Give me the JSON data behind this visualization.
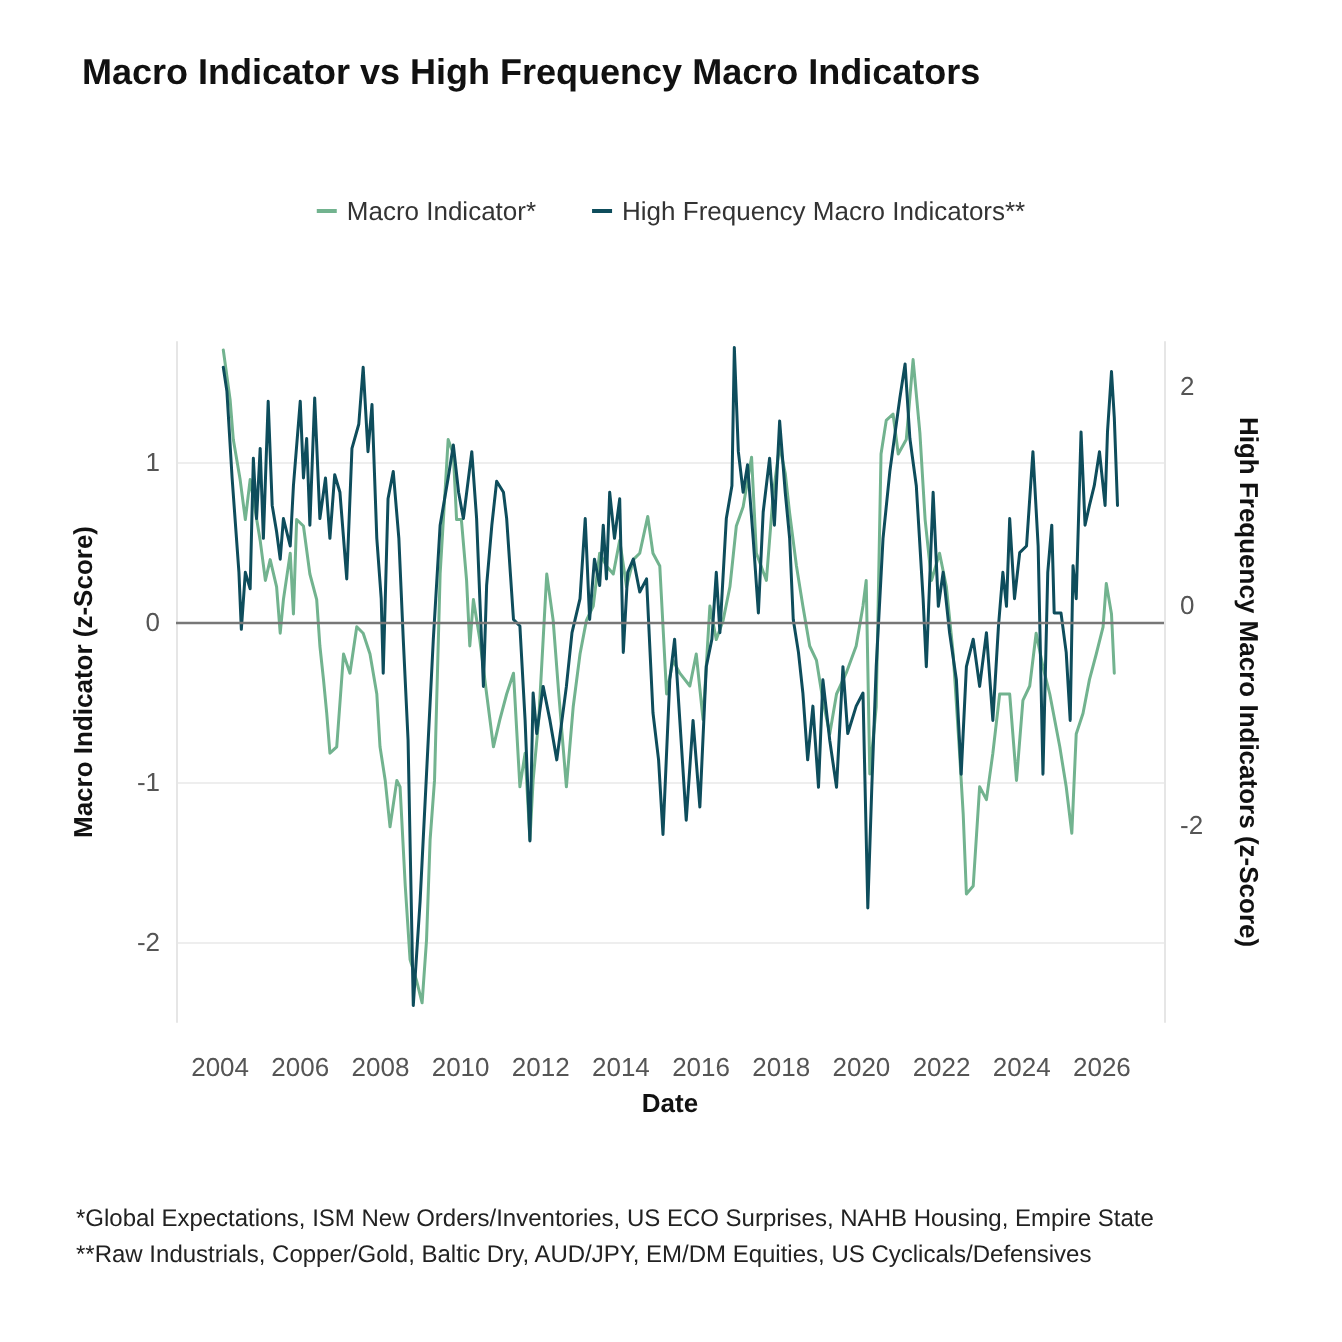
{
  "chart_data": {
    "type": "line",
    "title": "Macro Indicator vs High Frequency Macro Indicators",
    "xlabel": "Date",
    "ylabel": "Macro Indicator (z-Score)",
    "y2label": "High Frequency Macro Indicators (z-Score)",
    "xlim": [
      2002.9,
      2027.55
    ],
    "xticks": [
      2004,
      2006,
      2008,
      2010,
      2012,
      2014,
      2016,
      2018,
      2020,
      2022,
      2024,
      2026
    ],
    "ylim": [
      -2.5,
      1.75
    ],
    "yticks": [
      -2,
      -1,
      0,
      1
    ],
    "y2lim": [
      -3.8,
      2.4
    ],
    "y2ticks": [
      -2,
      0,
      2
    ],
    "grid": "y",
    "legend": "top",
    "line_style": "solid",
    "ref_lines": [
      {
        "axis": "y",
        "value": 0,
        "color": "#777777"
      }
    ],
    "annotations": [
      "*Global Expectations, ISM New Orders/Inventories, US ECO Surprises, NAHB Housing, Empire State",
      "**Raw Industrials, Copper/Gold, Baltic Dry, AUD/JPY, EM/DM Equities, US Cyclicals/Defensives"
    ],
    "series": [
      {
        "name": "Macro Indicator*",
        "color": "#72b38f",
        "axis": "y",
        "x": [
          2004.08,
          2004.25,
          2004.33,
          2004.5,
          2004.63,
          2004.75,
          2005.0,
          2005.13,
          2005.25,
          2005.41,
          2005.5,
          2005.58,
          2005.75,
          2005.83,
          2005.91,
          2006.08,
          2006.24,
          2006.41,
          2006.49,
          2006.58,
          2006.66,
          2006.74,
          2006.91,
          2007.08,
          2007.24,
          2007.41,
          2007.57,
          2007.74,
          2007.91,
          2007.99,
          2008.12,
          2008.24,
          2008.41,
          2008.49,
          2008.62,
          2008.74,
          2008.9,
          2009.04,
          2009.15,
          2009.24,
          2009.35,
          2009.49,
          2009.69,
          2009.82,
          2009.9,
          2010.02,
          2010.15,
          2010.23,
          2010.32,
          2010.48,
          2010.65,
          2010.82,
          2010.98,
          2011.15,
          2011.32,
          2011.48,
          2011.61,
          2011.73,
          2011.81,
          2011.95,
          2012.06,
          2012.15,
          2012.31,
          2012.45,
          2012.64,
          2012.81,
          2012.98,
          2013.14,
          2013.31,
          2013.47,
          2013.64,
          2013.81,
          2013.97,
          2014.14,
          2014.31,
          2014.47,
          2014.67,
          2014.8,
          2014.97,
          2015.14,
          2015.3,
          2015.47,
          2015.72,
          2015.88,
          2016.05,
          2016.22,
          2016.38,
          2016.55,
          2016.72,
          2016.88,
          2017.05,
          2017.26,
          2017.38,
          2017.63,
          2017.8,
          2017.96,
          2018.1,
          2018.21,
          2018.38,
          2018.54,
          2018.71,
          2018.88,
          2019.04,
          2019.21,
          2019.38,
          2019.62,
          2019.87,
          2020.04,
          2020.12,
          2020.21,
          2020.37,
          2020.49,
          2020.62,
          2020.79,
          2020.92,
          2021.12,
          2021.29,
          2021.46,
          2021.59,
          2021.75,
          2021.95,
          2022.12,
          2022.29,
          2022.45,
          2022.54,
          2022.62,
          2022.79,
          2022.95,
          2023.12,
          2023.28,
          2023.45,
          2023.7,
          2023.87,
          2024.03,
          2024.2,
          2024.36,
          2024.53,
          2024.7,
          2024.95,
          2025.11,
          2025.25,
          2025.36,
          2025.53,
          2025.69,
          2025.86,
          2026.03,
          2026.11,
          2026.24,
          2026.31
        ],
        "values": [
          1.7,
          1.39,
          1.14,
          0.89,
          0.64,
          0.89,
          0.51,
          0.26,
          0.39,
          0.22,
          -0.07,
          0.14,
          0.43,
          0.05,
          0.64,
          0.6,
          0.3,
          0.14,
          -0.15,
          -0.36,
          -0.57,
          -0.82,
          -0.78,
          -0.2,
          -0.32,
          -0.03,
          -0.07,
          -0.2,
          -0.45,
          -0.78,
          -0.99,
          -1.28,
          -0.99,
          -1.03,
          -1.65,
          -2.11,
          -2.24,
          -2.38,
          -1.99,
          -1.36,
          -0.99,
          0.3,
          1.14,
          1.05,
          0.64,
          0.64,
          0.26,
          -0.15,
          0.14,
          -0.11,
          -0.45,
          -0.78,
          -0.61,
          -0.45,
          -0.32,
          -1.03,
          -0.82,
          -1.36,
          -0.99,
          -0.61,
          -0.11,
          0.3,
          0.01,
          -0.45,
          -1.03,
          -0.53,
          -0.2,
          0.01,
          0.1,
          0.43,
          0.35,
          0.3,
          0.51,
          0.22,
          0.39,
          0.43,
          0.66,
          0.43,
          0.35,
          -0.45,
          -0.24,
          -0.32,
          -0.4,
          -0.2,
          -0.61,
          0.1,
          -0.11,
          0.01,
          0.22,
          0.6,
          0.72,
          1.03,
          0.43,
          0.26,
          0.8,
          1.1,
          0.93,
          0.68,
          0.35,
          0.1,
          -0.15,
          -0.24,
          -0.49,
          -0.7,
          -0.45,
          -0.32,
          -0.15,
          0.1,
          0.26,
          -0.95,
          -0.53,
          1.05,
          1.26,
          1.3,
          1.05,
          1.14,
          1.64,
          1.18,
          0.64,
          0.26,
          0.43,
          0.22,
          -0.2,
          -0.82,
          -1.2,
          -1.7,
          -1.65,
          -1.03,
          -1.11,
          -0.82,
          -0.45,
          -0.45,
          -0.99,
          -0.49,
          -0.4,
          -0.07,
          -0.28,
          -0.45,
          -0.78,
          -1.03,
          -1.32,
          -0.7,
          -0.57,
          -0.36,
          -0.2,
          -0.03,
          0.24,
          0.05,
          -0.32
        ]
      },
      {
        "name": "High Frequency Macro Indicators**",
        "color": "#0e4d5c",
        "axis": "y2",
        "x": [
          2004.08,
          2004.17,
          2004.3,
          2004.47,
          2004.53,
          2004.63,
          2004.75,
          2004.83,
          2004.91,
          2005.0,
          2005.08,
          2005.2,
          2005.3,
          2005.41,
          2005.5,
          2005.58,
          2005.75,
          2005.83,
          2006.0,
          2006.08,
          2006.16,
          2006.24,
          2006.36,
          2006.49,
          2006.63,
          2006.74,
          2006.86,
          2006.99,
          2007.16,
          2007.29,
          2007.46,
          2007.57,
          2007.69,
          2007.79,
          2007.91,
          2008.02,
          2008.07,
          2008.19,
          2008.32,
          2008.46,
          2008.57,
          2008.69,
          2008.82,
          2008.99,
          2009.15,
          2009.32,
          2009.49,
          2009.69,
          2009.82,
          2009.95,
          2010.07,
          2010.28,
          2010.4,
          2010.48,
          2010.57,
          2010.65,
          2010.78,
          2010.9,
          2011.07,
          2011.15,
          2011.32,
          2011.48,
          2011.61,
          2011.73,
          2011.81,
          2011.9,
          2012.06,
          2012.23,
          2012.4,
          2012.64,
          2012.78,
          2012.98,
          2013.11,
          2013.22,
          2013.34,
          2013.47,
          2013.56,
          2013.64,
          2013.72,
          2013.84,
          2013.97,
          2014.06,
          2014.17,
          2014.31,
          2014.47,
          2014.64,
          2014.8,
          2014.94,
          2015.05,
          2015.22,
          2015.34,
          2015.47,
          2015.63,
          2015.8,
          2015.97,
          2016.13,
          2016.27,
          2016.38,
          2016.47,
          2016.63,
          2016.77,
          2016.83,
          2016.93,
          2017.05,
          2017.16,
          2017.3,
          2017.43,
          2017.55,
          2017.71,
          2017.83,
          2017.96,
          2018.1,
          2018.21,
          2018.3,
          2018.43,
          2018.54,
          2018.66,
          2018.79,
          2018.93,
          2019.04,
          2019.21,
          2019.38,
          2019.54,
          2019.66,
          2019.87,
          2020.04,
          2020.16,
          2020.26,
          2020.37,
          2020.54,
          2020.71,
          2020.87,
          2020.96,
          2021.09,
          2021.21,
          2021.37,
          2021.54,
          2021.62,
          2021.79,
          2021.92,
          2022.04,
          2022.2,
          2022.37,
          2022.49,
          2022.62,
          2022.79,
          2022.95,
          2023.12,
          2023.28,
          2023.42,
          2023.53,
          2023.62,
          2023.7,
          2023.82,
          2023.95,
          2024.12,
          2024.28,
          2024.41,
          2024.53,
          2024.65,
          2024.75,
          2024.81,
          2024.98,
          2025.11,
          2025.21,
          2025.28,
          2025.36,
          2025.48,
          2025.58,
          2025.69,
          2025.81,
          2025.94,
          2026.08,
          2026.14,
          2026.24,
          2026.31,
          2026.39
        ],
        "values": [
          2.17,
          1.95,
          1.16,
          0.3,
          -0.22,
          0.3,
          0.15,
          1.34,
          0.79,
          1.43,
          0.61,
          1.86,
          0.91,
          0.67,
          0.42,
          0.79,
          0.54,
          1.09,
          1.86,
          1.16,
          1.52,
          0.73,
          1.89,
          0.79,
          1.16,
          0.61,
          1.19,
          1.03,
          0.24,
          1.43,
          1.65,
          2.17,
          1.4,
          1.83,
          0.61,
          0.06,
          -0.62,
          0.97,
          1.22,
          0.61,
          -0.31,
          -1.23,
          -3.65,
          -2.7,
          -1.54,
          -0.31,
          0.73,
          1.16,
          1.46,
          1.03,
          0.79,
          1.4,
          0.79,
          0.06,
          -0.74,
          0.18,
          0.73,
          1.13,
          1.03,
          0.79,
          -0.13,
          -0.19,
          -1.05,
          -2.15,
          -0.8,
          -1.17,
          -0.74,
          -1.05,
          -1.41,
          -0.74,
          -0.25,
          0.06,
          0.79,
          -0.13,
          0.42,
          0.18,
          0.73,
          0.24,
          1.03,
          0.61,
          0.97,
          -0.43,
          0.3,
          0.42,
          0.12,
          0.24,
          -0.98,
          -1.41,
          -2.09,
          -0.68,
          -0.31,
          -1.05,
          -1.96,
          -1.05,
          -1.84,
          -0.56,
          -0.31,
          0.3,
          -0.25,
          0.79,
          1.09,
          2.35,
          1.4,
          1.03,
          1.28,
          0.61,
          -0.07,
          0.85,
          1.34,
          0.73,
          1.68,
          1.03,
          0.61,
          -0.13,
          -0.43,
          -0.8,
          -1.41,
          -0.92,
          -1.66,
          -0.68,
          -1.23,
          -1.66,
          -0.56,
          -1.17,
          -0.92,
          -0.8,
          -2.76,
          -1.66,
          -0.56,
          0.61,
          1.22,
          1.65,
          1.89,
          2.2,
          1.52,
          1.09,
          0.06,
          -0.56,
          1.03,
          -0.01,
          0.3,
          -0.25,
          -0.68,
          -1.54,
          -0.56,
          -0.31,
          -0.74,
          -0.25,
          -1.05,
          -0.19,
          0.3,
          -0.01,
          0.79,
          0.06,
          0.48,
          0.54,
          1.4,
          0.54,
          -1.54,
          0.3,
          0.73,
          -0.07,
          -0.07,
          -0.43,
          -1.05,
          0.36,
          0.06,
          1.58,
          0.73,
          0.91,
          1.09,
          1.4,
          0.91,
          1.58,
          2.13,
          1.71,
          0.91
        ]
      }
    ]
  }
}
